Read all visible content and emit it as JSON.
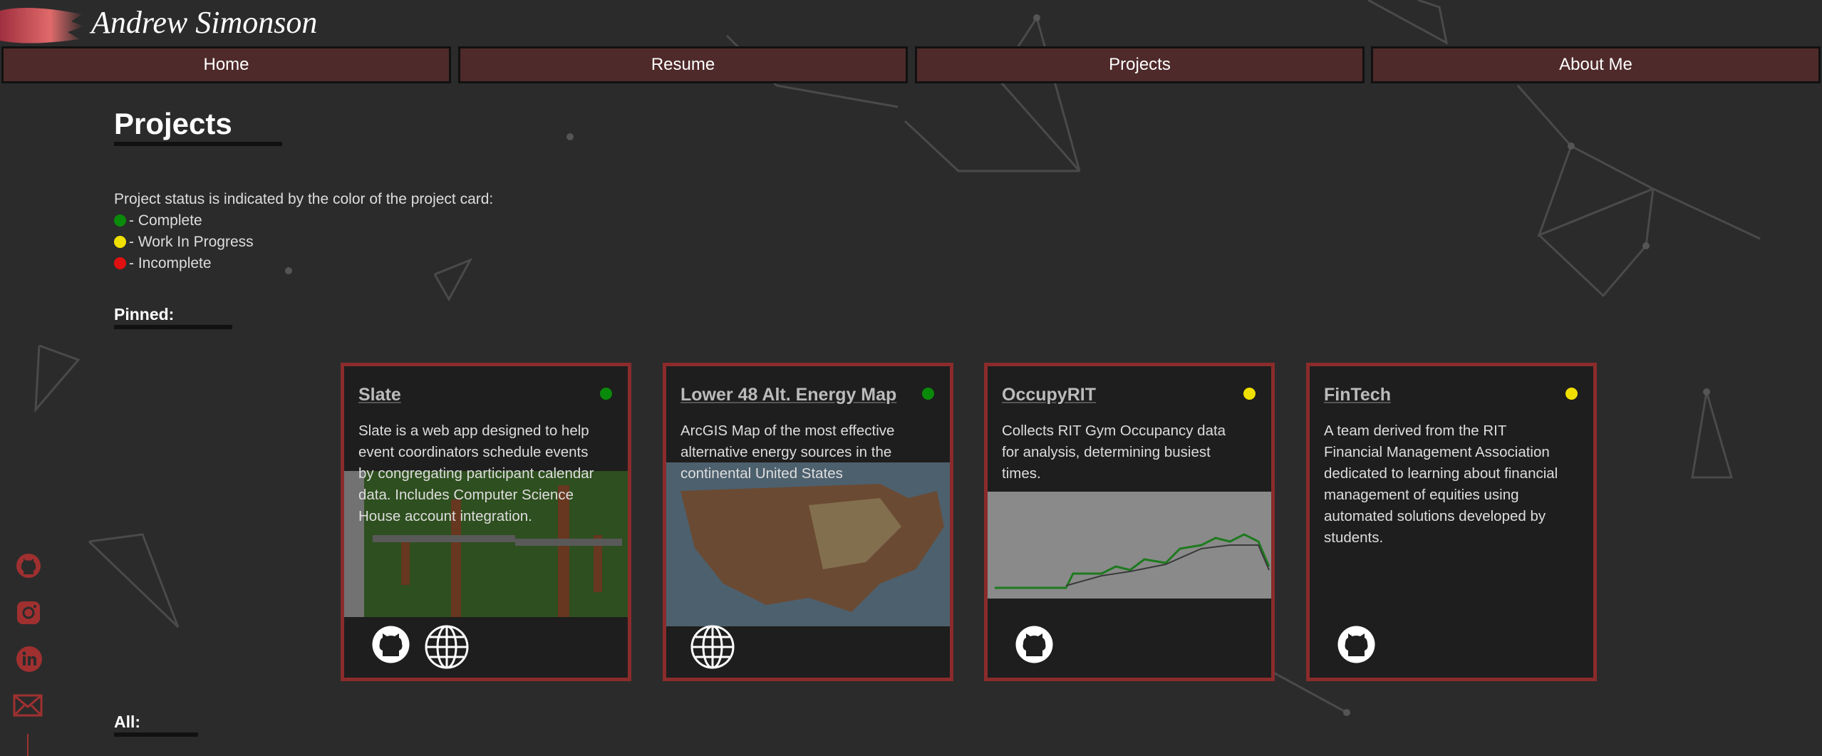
{
  "header": {
    "name": "Andrew Simonson"
  },
  "nav": {
    "items": [
      "Home",
      "Resume",
      "Projects",
      "About Me"
    ]
  },
  "page": {
    "title": "Projects"
  },
  "status": {
    "intro": "Project status is indicated by the color of the project card:",
    "legend": [
      "- Complete",
      "- Work In Progress",
      "- Incomplete"
    ]
  },
  "pinned": {
    "label": "Pinned:"
  },
  "cards": [
    {
      "title": "Slate",
      "description": "Slate is a web app designed to help event coordinators schedule events by congregating participant calendar data. Includes Computer Science House account integration."
    },
    {
      "title": "Lower 48 Alt. Energy Map",
      "description": "ArcGIS Map of the most effective alternative energy sources in the continental United States"
    },
    {
      "title": "OccupyRIT",
      "description": "Collects RIT Gym Occupancy data for analysis, determining busiest times."
    },
    {
      "title": "FinTech",
      "description": "A team derived from the RIT Financial Management Association dedicated to learning about financial management of equities using automated solutions developed by students."
    }
  ],
  "all": {
    "label": "All:"
  }
}
